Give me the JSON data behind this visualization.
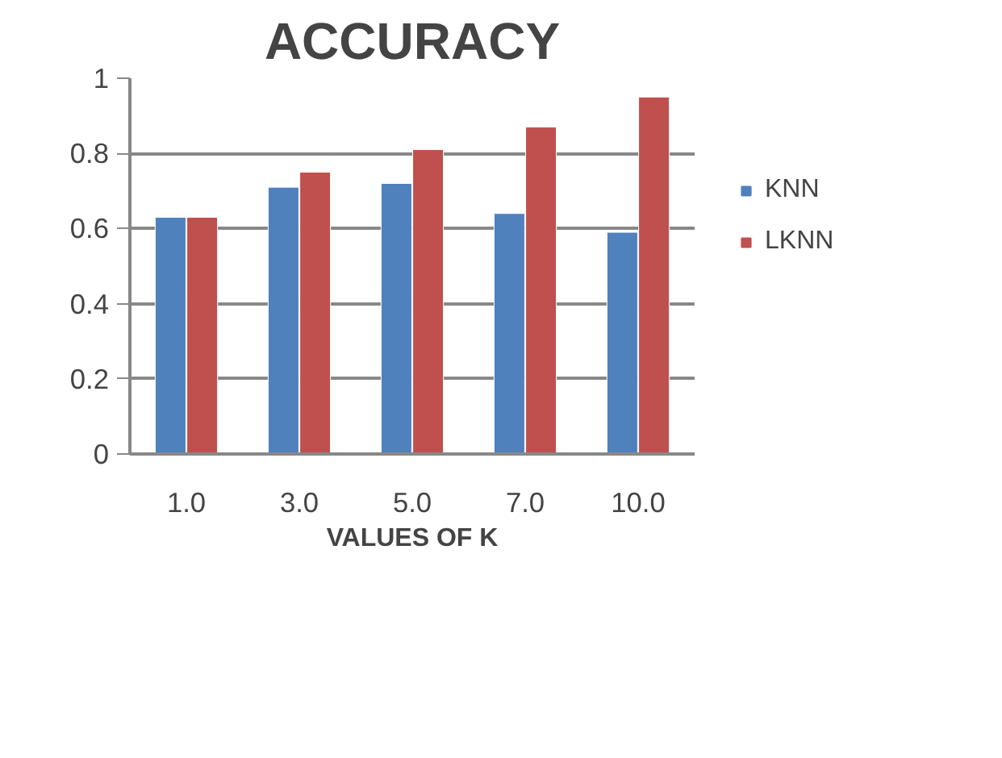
{
  "chart_data": {
    "type": "bar",
    "title": "ACCURACY",
    "xlabel": "VALUES OF K",
    "categories": [
      "1.0",
      "3.0",
      "5.0",
      "7.0",
      "10.0"
    ],
    "series": [
      {
        "name": "KNN",
        "color": "#4f81bd",
        "values": [
          0.63,
          0.71,
          0.72,
          0.64,
          0.59
        ]
      },
      {
        "name": "LKNN",
        "color": "#c0504d",
        "values": [
          0.63,
          0.75,
          0.81,
          0.87,
          0.95
        ]
      }
    ],
    "ylim": [
      0,
      1
    ],
    "yticks": [
      0,
      0.2,
      0.4,
      0.6,
      0.8,
      1
    ],
    "grid": "y",
    "legend": "right"
  }
}
